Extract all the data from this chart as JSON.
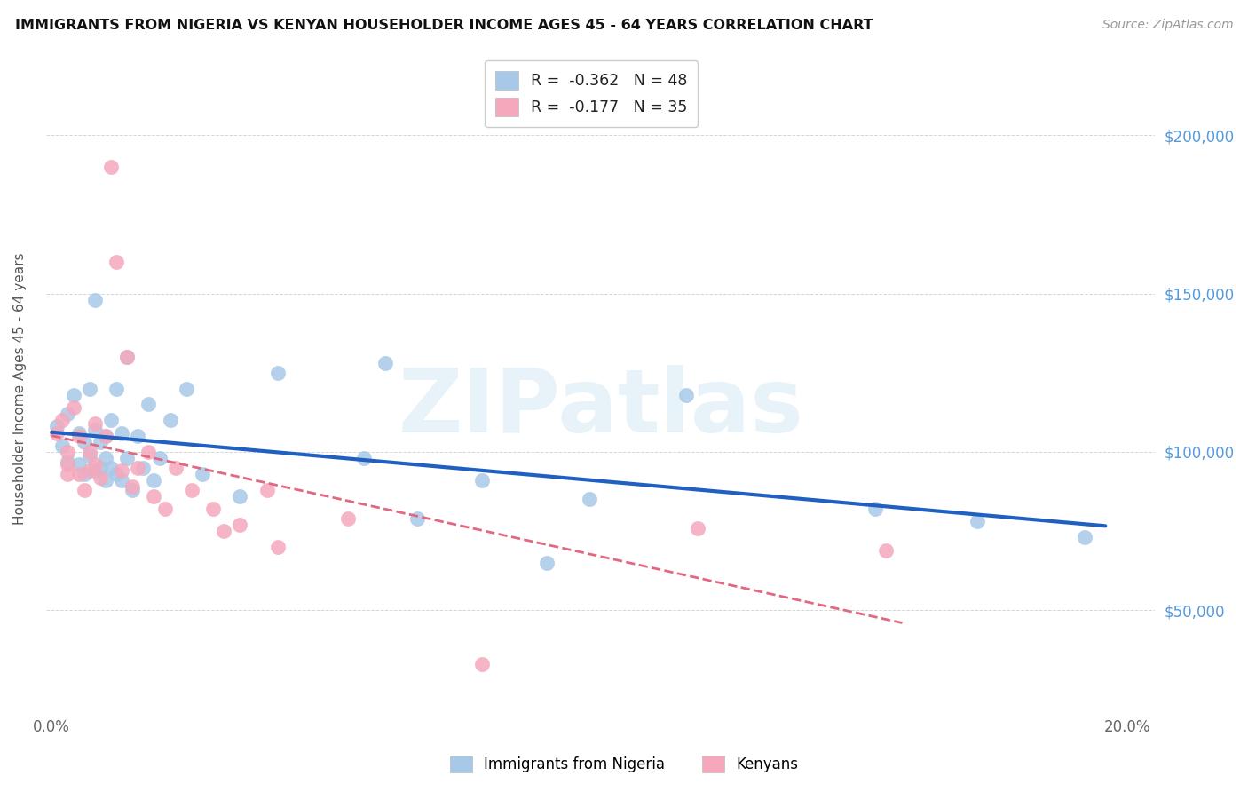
{
  "title": "IMMIGRANTS FROM NIGERIA VS KENYAN HOUSEHOLDER INCOME AGES 45 - 64 YEARS CORRELATION CHART",
  "source": "Source: ZipAtlas.com",
  "ylabel": "Householder Income Ages 45 - 64 years",
  "xlim_min": -0.001,
  "xlim_max": 0.205,
  "ylim_min": 18000,
  "ylim_max": 222000,
  "nigeria_R": -0.362,
  "nigeria_N": 48,
  "kenya_R": -0.177,
  "kenya_N": 35,
  "nigeria_color": "#a8c8e8",
  "kenya_color": "#f5a8bc",
  "nigeria_line_color": "#2060c0",
  "kenya_line_color": "#e06880",
  "watermark": "ZIPatlas",
  "nigeria_x": [
    0.001,
    0.002,
    0.003,
    0.003,
    0.004,
    0.005,
    0.005,
    0.006,
    0.006,
    0.007,
    0.007,
    0.008,
    0.008,
    0.008,
    0.009,
    0.009,
    0.01,
    0.01,
    0.01,
    0.011,
    0.011,
    0.012,
    0.012,
    0.013,
    0.013,
    0.014,
    0.014,
    0.015,
    0.016,
    0.017,
    0.018,
    0.019,
    0.02,
    0.022,
    0.025,
    0.028,
    0.035,
    0.042,
    0.058,
    0.062,
    0.068,
    0.08,
    0.092,
    0.1,
    0.118,
    0.153,
    0.172,
    0.192
  ],
  "nigeria_y": [
    108000,
    102000,
    112000,
    97000,
    118000,
    106000,
    96000,
    103000,
    93000,
    120000,
    99000,
    148000,
    107000,
    94000,
    103000,
    95000,
    105000,
    98000,
    91000,
    110000,
    95000,
    120000,
    93000,
    106000,
    91000,
    130000,
    98000,
    88000,
    105000,
    95000,
    115000,
    91000,
    98000,
    110000,
    120000,
    93000,
    86000,
    125000,
    98000,
    128000,
    79000,
    91000,
    65000,
    85000,
    118000,
    82000,
    78000,
    73000
  ],
  "kenya_x": [
    0.001,
    0.002,
    0.003,
    0.003,
    0.004,
    0.005,
    0.005,
    0.006,
    0.007,
    0.007,
    0.008,
    0.008,
    0.009,
    0.01,
    0.011,
    0.012,
    0.013,
    0.014,
    0.015,
    0.016,
    0.018,
    0.019,
    0.021,
    0.023,
    0.026,
    0.03,
    0.032,
    0.035,
    0.04,
    0.042,
    0.055,
    0.08,
    0.12,
    0.155,
    0.003
  ],
  "kenya_y": [
    106000,
    110000,
    100000,
    96000,
    114000,
    93000,
    105000,
    88000,
    100000,
    94000,
    109000,
    96000,
    92000,
    105000,
    190000,
    160000,
    94000,
    130000,
    89000,
    95000,
    100000,
    86000,
    82000,
    95000,
    88000,
    82000,
    75000,
    77000,
    88000,
    70000,
    79000,
    33000,
    76000,
    69000,
    93000
  ]
}
